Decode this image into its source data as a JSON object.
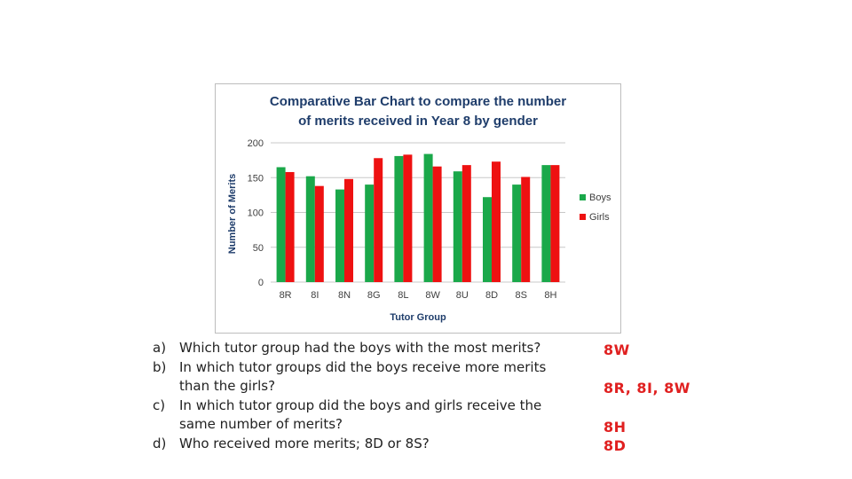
{
  "chart_data": {
    "type": "bar",
    "title_lines": [
      "Comparative Bar Chart to compare the number",
      "of merits received in Year 8 by gender"
    ],
    "xlabel": "Tutor Group",
    "ylabel": "Number of Merits",
    "categories": [
      "8R",
      "8I",
      "8N",
      "8G",
      "8L",
      "8W",
      "8U",
      "8D",
      "8S",
      "8H"
    ],
    "series": [
      {
        "name": "Boys",
        "color": "#1aa84a",
        "values": [
          165,
          152,
          133,
          140,
          181,
          184,
          159,
          122,
          140,
          168
        ]
      },
      {
        "name": "Girls",
        "color": "#ee1111",
        "values": [
          158,
          138,
          148,
          178,
          183,
          166,
          168,
          173,
          151,
          168
        ]
      }
    ],
    "ylim": [
      0,
      200
    ],
    "yticks": [
      "0",
      "50",
      "100",
      "150",
      "200"
    ],
    "grid": true,
    "legend": "right"
  },
  "questions": [
    {
      "letter": "a)",
      "lines": [
        "Which tutor group had the boys with the most merits?"
      ]
    },
    {
      "letter": "b)",
      "lines": [
        "In which tutor groups did the boys receive more merits",
        "than the girls?"
      ]
    },
    {
      "letter": "c)",
      "lines": [
        "In which tutor group did the boys and girls receive the",
        "same number of merits?"
      ]
    },
    {
      "letter": "d)",
      "lines": [
        "Who received more merits; 8D or 8S?"
      ]
    }
  ],
  "answers": {
    "a": "8W",
    "b": "8R, 8I, 8W",
    "c": "8H",
    "d": "8D"
  }
}
